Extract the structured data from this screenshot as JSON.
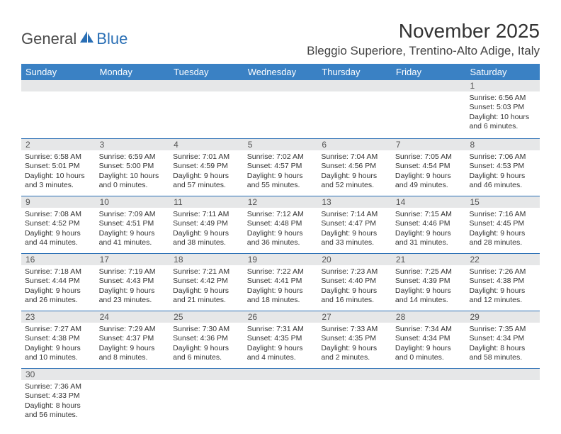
{
  "brand": {
    "part1": "General",
    "part2": "Blue"
  },
  "title": "November 2025",
  "location": "Bleggio Superiore, Trentino-Alto Adige, Italy",
  "colors": {
    "header_bg": "#3a81c4",
    "header_text": "#ffffff",
    "daynum_bg": "#e6e7e8",
    "rule": "#2a6fb5",
    "text": "#333333",
    "logo_blue": "#2a6fb5",
    "logo_grey": "#4a4a4a",
    "page_bg": "#ffffff"
  },
  "day_labels": [
    "Sunday",
    "Monday",
    "Tuesday",
    "Wednesday",
    "Thursday",
    "Friday",
    "Saturday"
  ],
  "weeks": [
    [
      null,
      null,
      null,
      null,
      null,
      null,
      {
        "d": "1",
        "sr": "Sunrise: 6:56 AM",
        "ss": "Sunset: 5:03 PM",
        "dl1": "Daylight: 10 hours",
        "dl2": "and 6 minutes."
      }
    ],
    [
      {
        "d": "2",
        "sr": "Sunrise: 6:58 AM",
        "ss": "Sunset: 5:01 PM",
        "dl1": "Daylight: 10 hours",
        "dl2": "and 3 minutes."
      },
      {
        "d": "3",
        "sr": "Sunrise: 6:59 AM",
        "ss": "Sunset: 5:00 PM",
        "dl1": "Daylight: 10 hours",
        "dl2": "and 0 minutes."
      },
      {
        "d": "4",
        "sr": "Sunrise: 7:01 AM",
        "ss": "Sunset: 4:59 PM",
        "dl1": "Daylight: 9 hours",
        "dl2": "and 57 minutes."
      },
      {
        "d": "5",
        "sr": "Sunrise: 7:02 AM",
        "ss": "Sunset: 4:57 PM",
        "dl1": "Daylight: 9 hours",
        "dl2": "and 55 minutes."
      },
      {
        "d": "6",
        "sr": "Sunrise: 7:04 AM",
        "ss": "Sunset: 4:56 PM",
        "dl1": "Daylight: 9 hours",
        "dl2": "and 52 minutes."
      },
      {
        "d": "7",
        "sr": "Sunrise: 7:05 AM",
        "ss": "Sunset: 4:54 PM",
        "dl1": "Daylight: 9 hours",
        "dl2": "and 49 minutes."
      },
      {
        "d": "8",
        "sr": "Sunrise: 7:06 AM",
        "ss": "Sunset: 4:53 PM",
        "dl1": "Daylight: 9 hours",
        "dl2": "and 46 minutes."
      }
    ],
    [
      {
        "d": "9",
        "sr": "Sunrise: 7:08 AM",
        "ss": "Sunset: 4:52 PM",
        "dl1": "Daylight: 9 hours",
        "dl2": "and 44 minutes."
      },
      {
        "d": "10",
        "sr": "Sunrise: 7:09 AM",
        "ss": "Sunset: 4:51 PM",
        "dl1": "Daylight: 9 hours",
        "dl2": "and 41 minutes."
      },
      {
        "d": "11",
        "sr": "Sunrise: 7:11 AM",
        "ss": "Sunset: 4:49 PM",
        "dl1": "Daylight: 9 hours",
        "dl2": "and 38 minutes."
      },
      {
        "d": "12",
        "sr": "Sunrise: 7:12 AM",
        "ss": "Sunset: 4:48 PM",
        "dl1": "Daylight: 9 hours",
        "dl2": "and 36 minutes."
      },
      {
        "d": "13",
        "sr": "Sunrise: 7:14 AM",
        "ss": "Sunset: 4:47 PM",
        "dl1": "Daylight: 9 hours",
        "dl2": "and 33 minutes."
      },
      {
        "d": "14",
        "sr": "Sunrise: 7:15 AM",
        "ss": "Sunset: 4:46 PM",
        "dl1": "Daylight: 9 hours",
        "dl2": "and 31 minutes."
      },
      {
        "d": "15",
        "sr": "Sunrise: 7:16 AM",
        "ss": "Sunset: 4:45 PM",
        "dl1": "Daylight: 9 hours",
        "dl2": "and 28 minutes."
      }
    ],
    [
      {
        "d": "16",
        "sr": "Sunrise: 7:18 AM",
        "ss": "Sunset: 4:44 PM",
        "dl1": "Daylight: 9 hours",
        "dl2": "and 26 minutes."
      },
      {
        "d": "17",
        "sr": "Sunrise: 7:19 AM",
        "ss": "Sunset: 4:43 PM",
        "dl1": "Daylight: 9 hours",
        "dl2": "and 23 minutes."
      },
      {
        "d": "18",
        "sr": "Sunrise: 7:21 AM",
        "ss": "Sunset: 4:42 PM",
        "dl1": "Daylight: 9 hours",
        "dl2": "and 21 minutes."
      },
      {
        "d": "19",
        "sr": "Sunrise: 7:22 AM",
        "ss": "Sunset: 4:41 PM",
        "dl1": "Daylight: 9 hours",
        "dl2": "and 18 minutes."
      },
      {
        "d": "20",
        "sr": "Sunrise: 7:23 AM",
        "ss": "Sunset: 4:40 PM",
        "dl1": "Daylight: 9 hours",
        "dl2": "and 16 minutes."
      },
      {
        "d": "21",
        "sr": "Sunrise: 7:25 AM",
        "ss": "Sunset: 4:39 PM",
        "dl1": "Daylight: 9 hours",
        "dl2": "and 14 minutes."
      },
      {
        "d": "22",
        "sr": "Sunrise: 7:26 AM",
        "ss": "Sunset: 4:38 PM",
        "dl1": "Daylight: 9 hours",
        "dl2": "and 12 minutes."
      }
    ],
    [
      {
        "d": "23",
        "sr": "Sunrise: 7:27 AM",
        "ss": "Sunset: 4:38 PM",
        "dl1": "Daylight: 9 hours",
        "dl2": "and 10 minutes."
      },
      {
        "d": "24",
        "sr": "Sunrise: 7:29 AM",
        "ss": "Sunset: 4:37 PM",
        "dl1": "Daylight: 9 hours",
        "dl2": "and 8 minutes."
      },
      {
        "d": "25",
        "sr": "Sunrise: 7:30 AM",
        "ss": "Sunset: 4:36 PM",
        "dl1": "Daylight: 9 hours",
        "dl2": "and 6 minutes."
      },
      {
        "d": "26",
        "sr": "Sunrise: 7:31 AM",
        "ss": "Sunset: 4:35 PM",
        "dl1": "Daylight: 9 hours",
        "dl2": "and 4 minutes."
      },
      {
        "d": "27",
        "sr": "Sunrise: 7:33 AM",
        "ss": "Sunset: 4:35 PM",
        "dl1": "Daylight: 9 hours",
        "dl2": "and 2 minutes."
      },
      {
        "d": "28",
        "sr": "Sunrise: 7:34 AM",
        "ss": "Sunset: 4:34 PM",
        "dl1": "Daylight: 9 hours",
        "dl2": "and 0 minutes."
      },
      {
        "d": "29",
        "sr": "Sunrise: 7:35 AM",
        "ss": "Sunset: 4:34 PM",
        "dl1": "Daylight: 8 hours",
        "dl2": "and 58 minutes."
      }
    ],
    [
      {
        "d": "30",
        "sr": "Sunrise: 7:36 AM",
        "ss": "Sunset: 4:33 PM",
        "dl1": "Daylight: 8 hours",
        "dl2": "and 56 minutes."
      },
      null,
      null,
      null,
      null,
      null,
      null
    ]
  ]
}
